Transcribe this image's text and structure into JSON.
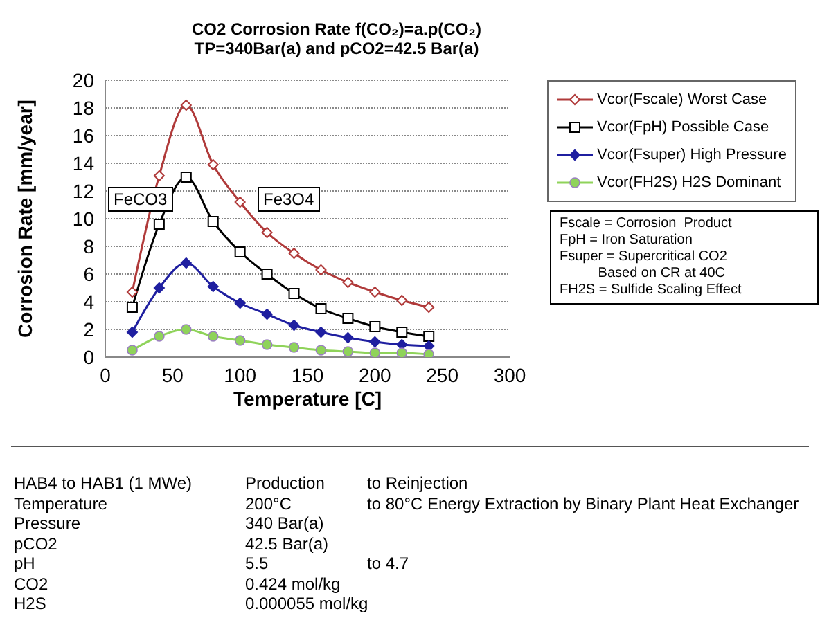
{
  "chart_data": {
    "type": "line",
    "title": "CO2 Corrosion Rate f(CO₂)=a.p(CO₂)",
    "subtitle": "TP=340Bar(a) and pCO2=42.5 Bar(a)",
    "xlabel": "Temperature [C]",
    "ylabel": "Corrosion Rate [mm/year]",
    "x": [
      20,
      40,
      60,
      80,
      100,
      120,
      140,
      160,
      180,
      200,
      220,
      240
    ],
    "series": [
      {
        "name": "Vcor(Fscale) Worst Case",
        "color": "#b03a3a",
        "marker": "diamond",
        "values": [
          4.7,
          13.1,
          18.2,
          13.9,
          11.2,
          9.0,
          7.5,
          6.3,
          5.4,
          4.7,
          4.1,
          3.6
        ]
      },
      {
        "name": "Vcor(FpH) Possible Case",
        "color": "#000000",
        "marker": "square",
        "values": [
          3.6,
          9.6,
          13.0,
          9.8,
          7.6,
          6.0,
          4.6,
          3.5,
          2.8,
          2.2,
          1.8,
          1.5
        ]
      },
      {
        "name": "Vcor(Fsuper) High Pressure",
        "color": "#1f1fa0",
        "marker": "diamond",
        "values": [
          1.8,
          5.0,
          6.8,
          5.1,
          3.9,
          3.1,
          2.3,
          1.8,
          1.4,
          1.1,
          0.9,
          0.8
        ]
      },
      {
        "name": "Vcor(FH2S) H2S Dominant",
        "color": "#8fd35a",
        "marker": "circle",
        "values": [
          0.5,
          1.5,
          2.0,
          1.5,
          1.2,
          0.9,
          0.7,
          0.5,
          0.4,
          0.3,
          0.3,
          0.2
        ]
      }
    ],
    "xlim": [
      0,
      300
    ],
    "xticks": [
      0,
      50,
      100,
      150,
      200,
      250,
      300
    ],
    "ylim": [
      0,
      20
    ],
    "yticks": [
      0,
      2,
      4,
      6,
      8,
      10,
      12,
      14,
      16,
      18,
      20
    ],
    "grid": "y",
    "legend": "right",
    "line_style": "solid",
    "annotations": [
      "FeCO3",
      "Fe3O4",
      "Fscale = Corrosion  Product\nFpH = Iron Saturation\nFsuper = Supercritical CO2\n          Based on CR at 40C\nFH2S = Sulfide Scaling Effect",
      "HAB4 to HAB1 (1 MWe)\tProduction\tto Reinjection\nTemperature\t200°C\tto 80°C Energy Extraction by Binary Plant Heat Exchanger\nPressure\t340 Bar(a)\t\npCO2\t42.5 Bar(a)\t\npH\t5.5\tto 4.7\nCO2\t0.424 mol/kg\t\nH2S\t0.000055 mol/kg\t"
    ]
  }
}
